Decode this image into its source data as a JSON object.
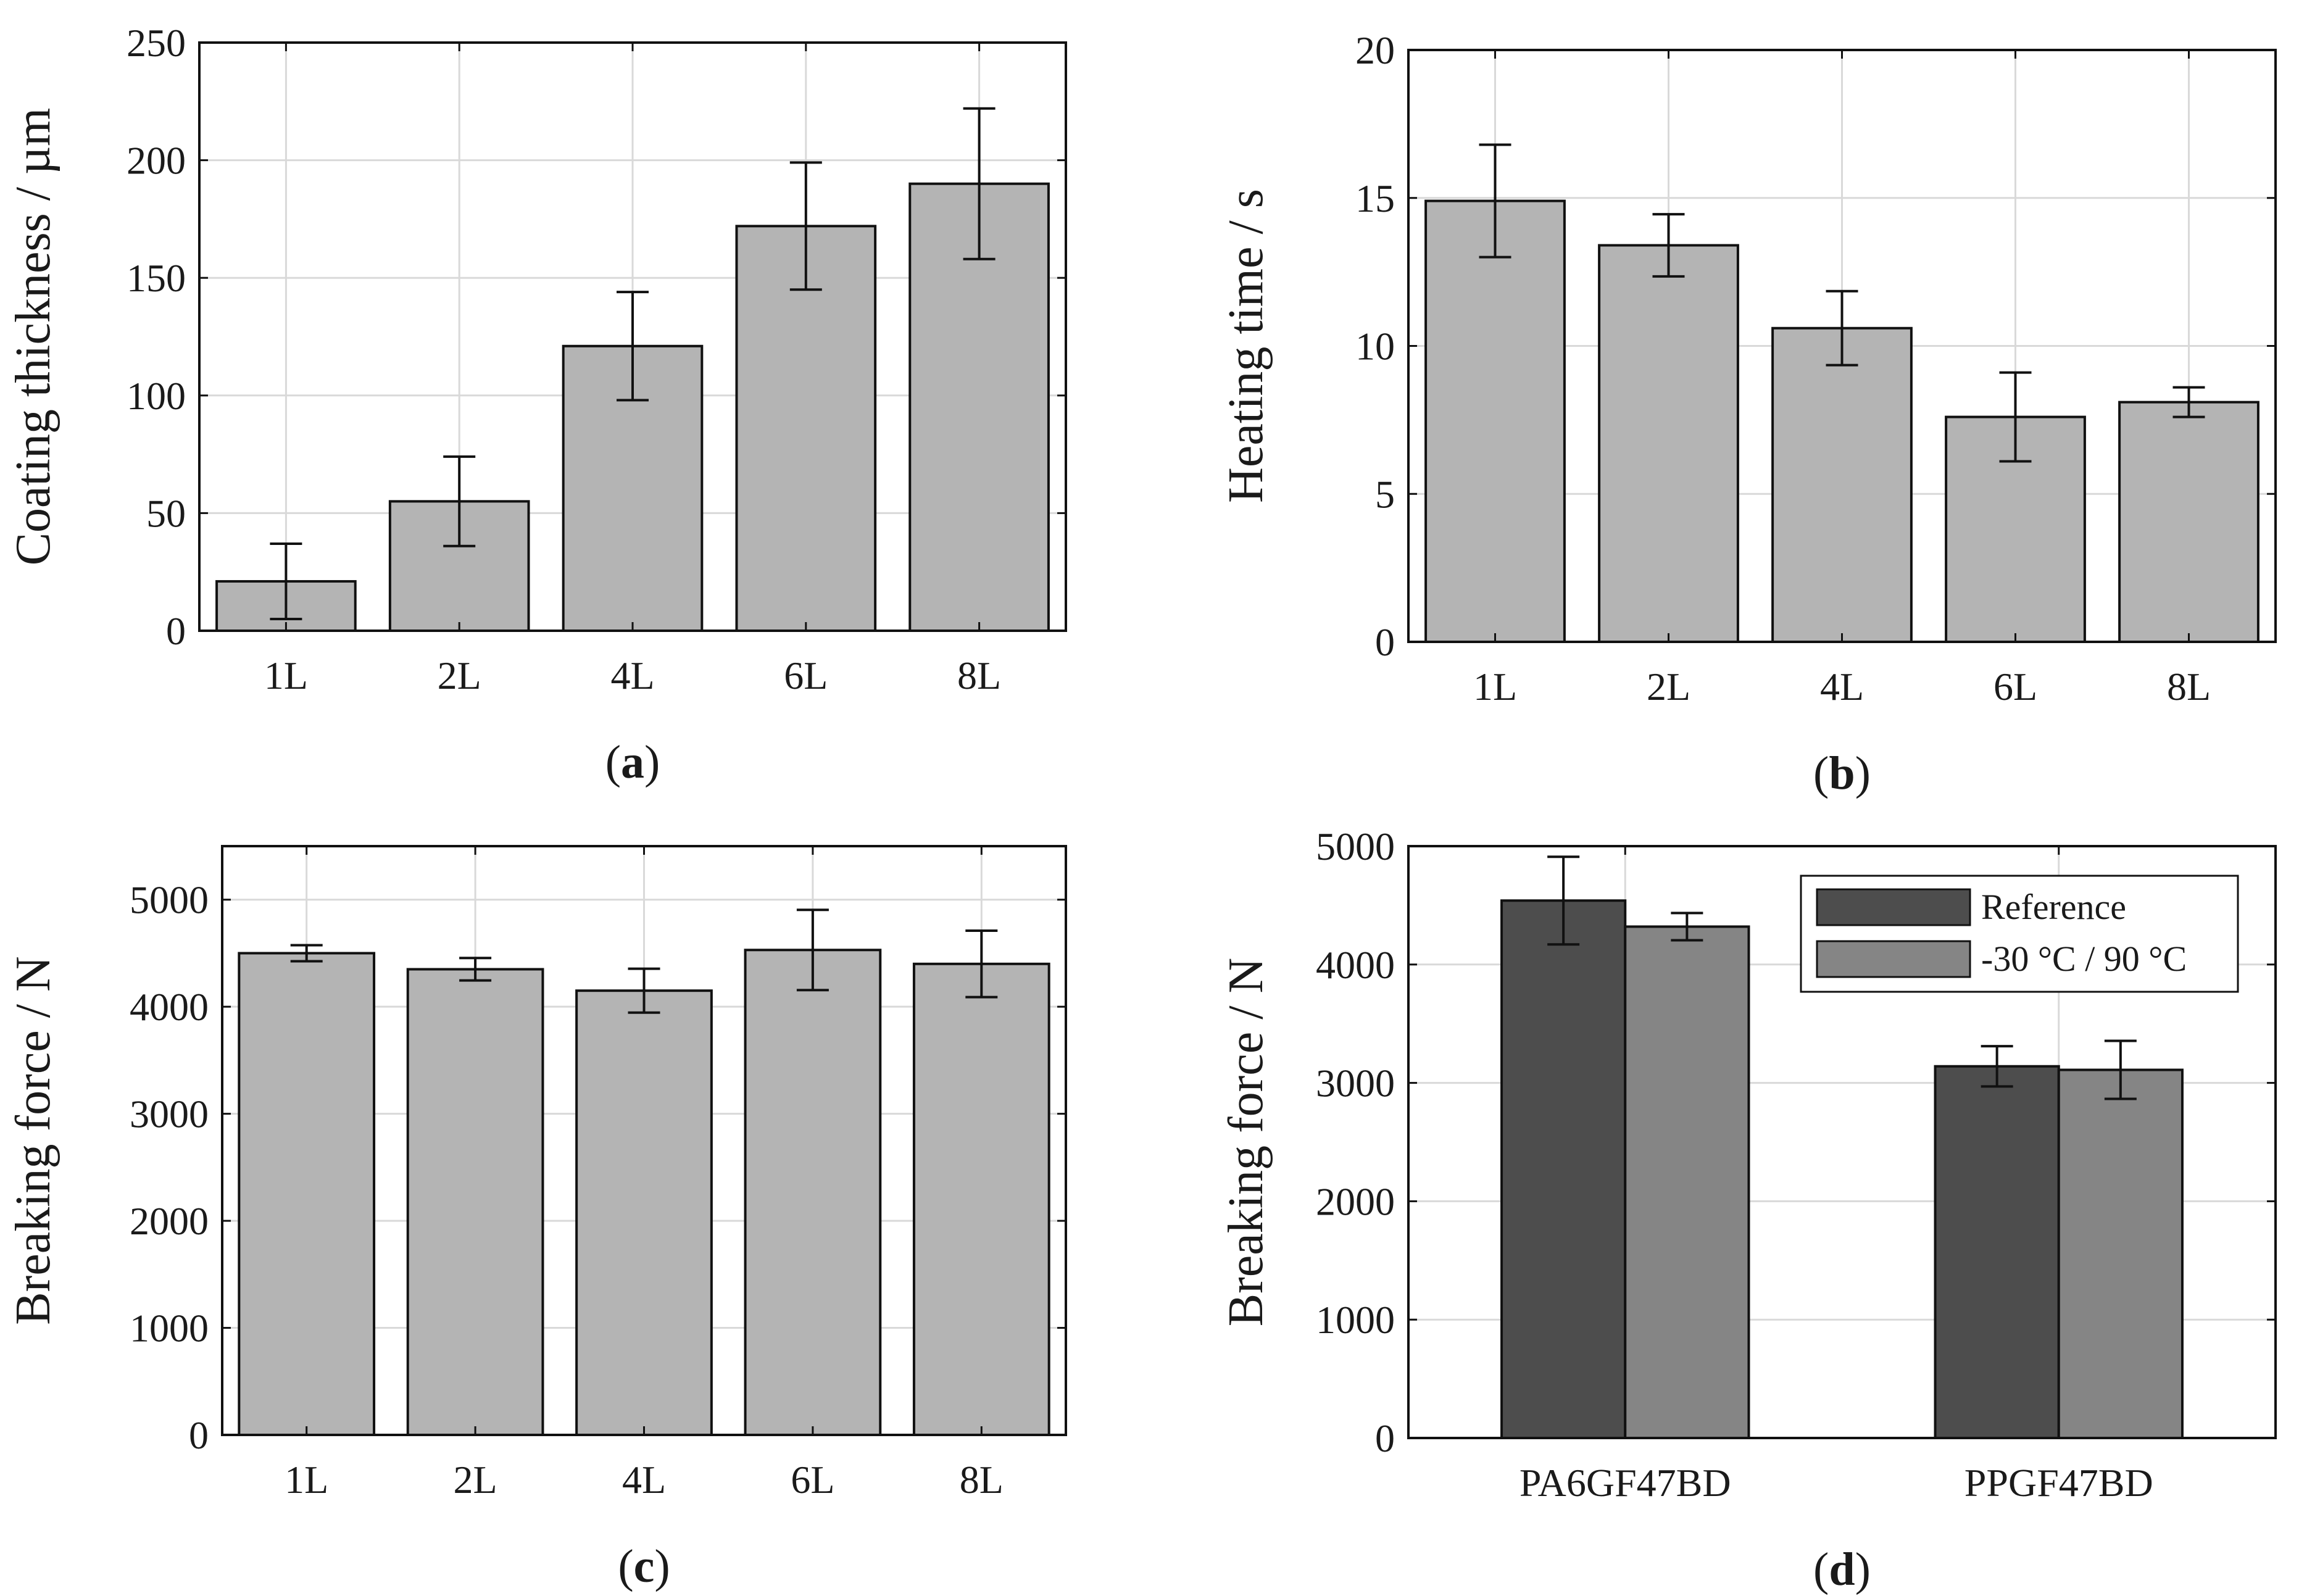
{
  "colors": {
    "bar_gray": "#b4b4b4",
    "ref_dark": "#4d4d4d",
    "cond_gray": "#858585",
    "grid": "#d9d9d9",
    "edge": "#111111"
  },
  "chart_data": [
    {
      "id": "a",
      "type": "bar",
      "panel_label": "a",
      "categories": [
        "1L",
        "2L",
        "4L",
        "6L",
        "8L"
      ],
      "values": [
        21,
        55,
        121,
        172,
        190
      ],
      "errors": [
        16,
        19,
        23,
        27,
        32
      ],
      "ylabel": "Coating thickness / µm",
      "xlabel": "",
      "ylim": [
        0,
        250
      ],
      "yticks": [
        0,
        50,
        100,
        150,
        200,
        250
      ],
      "grid": true
    },
    {
      "id": "b",
      "type": "bar",
      "panel_label": "b",
      "categories": [
        "1L",
        "2L",
        "4L",
        "6L",
        "8L"
      ],
      "values": [
        14.9,
        13.4,
        10.6,
        7.6,
        8.1
      ],
      "errors": [
        1.9,
        1.05,
        1.25,
        1.5,
        0.5
      ],
      "ylabel": "Heating time / s",
      "xlabel": "",
      "ylim": [
        0,
        20
      ],
      "yticks": [
        0,
        5,
        10,
        15,
        20
      ],
      "grid": true
    },
    {
      "id": "c",
      "type": "bar",
      "panel_label": "c",
      "categories": [
        "1L",
        "2L",
        "4L",
        "6L",
        "8L"
      ],
      "values": [
        4500,
        4350,
        4150,
        4530,
        4400
      ],
      "errors": [
        75,
        105,
        205,
        375,
        310
      ],
      "ylabel": "Breaking force / N",
      "xlabel": "",
      "ylim": [
        0,
        5500
      ],
      "yticks": [
        0,
        1000,
        2000,
        3000,
        4000,
        5000
      ],
      "grid": true
    },
    {
      "id": "d",
      "type": "bar",
      "panel_label": "d",
      "categories": [
        "PA6GF47BD",
        "PPGF47BD"
      ],
      "series": [
        {
          "name": "Reference",
          "values": [
            4540,
            3140
          ],
          "errors": [
            370,
            170
          ]
        },
        {
          "name": "-30 °C / 90 °C",
          "values": [
            4320,
            3110
          ],
          "errors": [
            115,
            245
          ]
        }
      ],
      "ylabel": "Breaking force / N",
      "xlabel": "",
      "ylim": [
        0,
        5000
      ],
      "yticks": [
        0,
        1000,
        2000,
        3000,
        4000,
        5000
      ],
      "grid": true,
      "legend_position": "top-right"
    }
  ]
}
